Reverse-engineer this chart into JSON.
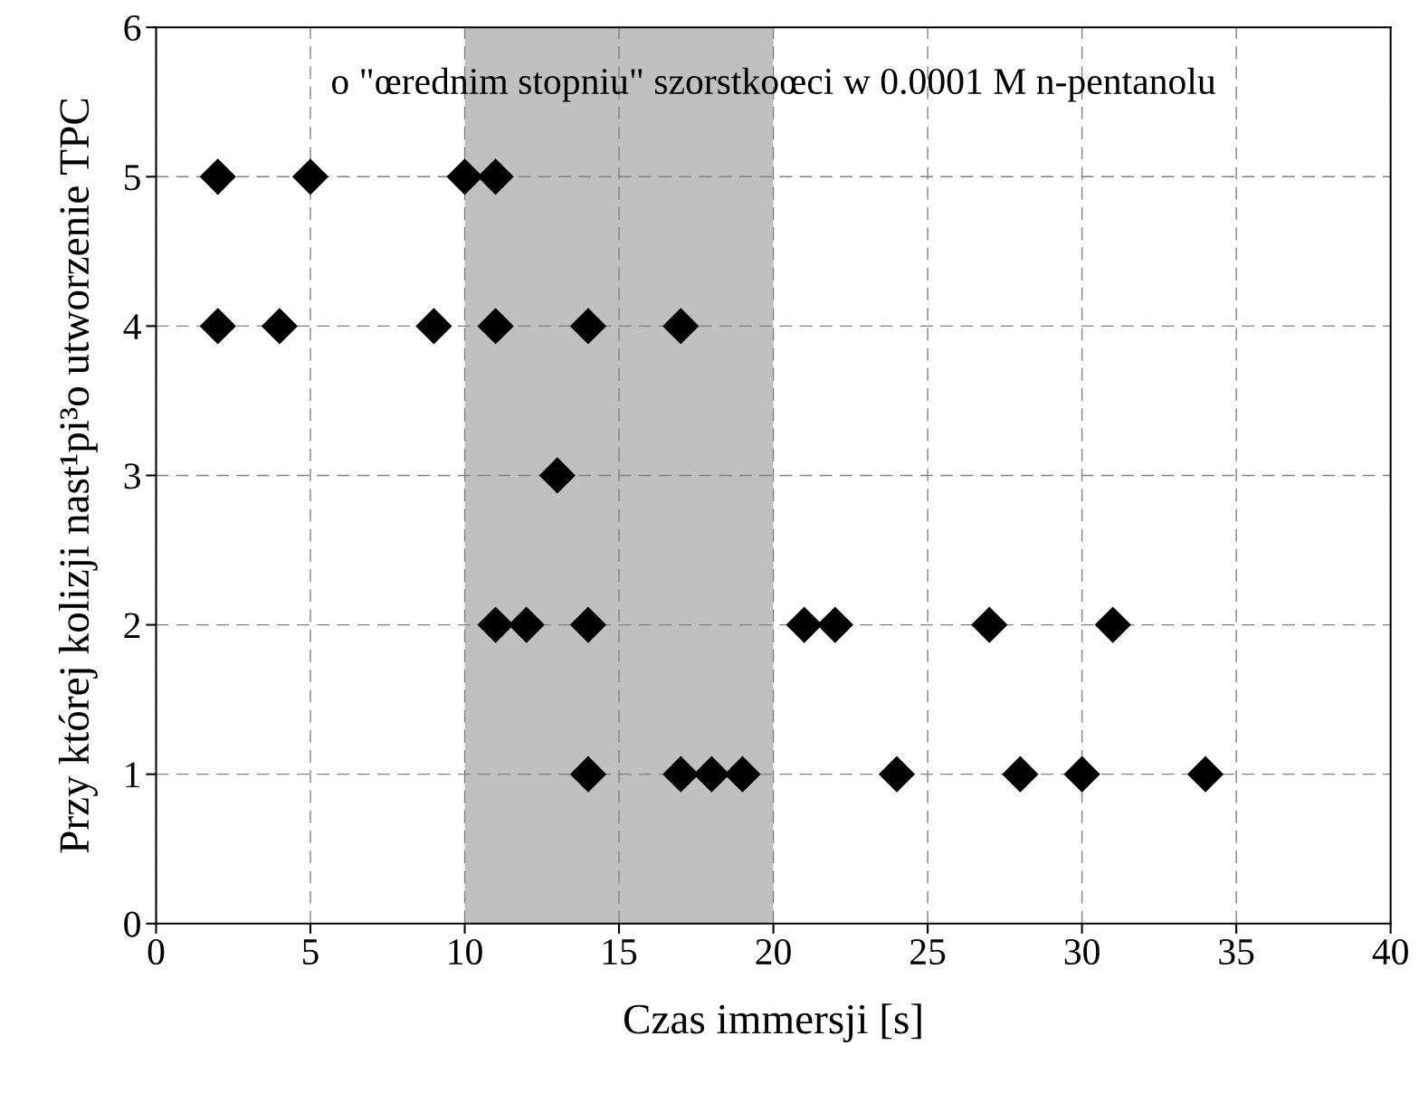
{
  "chart_data": {
    "type": "scatter",
    "title": "o \"œrednim stopniu\" szorstkoœci w 0.0001 M n-pentanolu",
    "xlabel": "Czas immersji [s]",
    "ylabel": "Przy której kolizji nast¹pi³o utworzenie TPC",
    "x": [
      2,
      5,
      10,
      11,
      2,
      4,
      9,
      11,
      14,
      17,
      13,
      11,
      12,
      14,
      21,
      22,
      27,
      31,
      14,
      17,
      18,
      19,
      24,
      28,
      30,
      34
    ],
    "values": [
      5,
      5,
      5,
      5,
      4,
      4,
      4,
      4,
      4,
      4,
      3,
      2,
      2,
      2,
      2,
      2,
      2,
      2,
      1,
      1,
      1,
      1,
      1,
      1,
      1,
      1
    ],
    "color": "#000000",
    "marker": "diamond",
    "xlim": [
      0,
      40
    ],
    "xticks": [
      0,
      5,
      10,
      15,
      20,
      25,
      30,
      35,
      40
    ],
    "ylim": [
      0,
      6
    ],
    "yticks": [
      0,
      1,
      2,
      3,
      4,
      5,
      6
    ],
    "bands": [
      {
        "axis": "x",
        "from": 10,
        "to": 20,
        "color": "#c0c0c0"
      }
    ],
    "grid": true,
    "legend": false
  }
}
